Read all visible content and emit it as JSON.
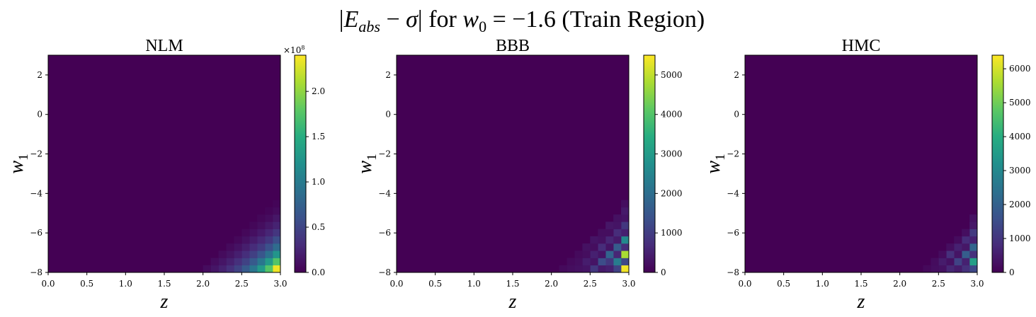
{
  "figure": {
    "suptitle_parts": {
      "open_bar": "|",
      "E": "E",
      "E_sub": "abs",
      "minus": " − ",
      "sigma": "σ",
      "close_bar": "|",
      "for_text": " for ",
      "w": "w",
      "w_sub": "0",
      "equals": " = −1.6 (Train Region)"
    },
    "colormap": "viridis",
    "colors": {
      "vmin": "#440154",
      "vmax": "#fde725",
      "background": "#ffffff",
      "axis": "#000000"
    }
  },
  "chart_data": [
    {
      "type": "heatmap",
      "title": "NLM",
      "xlabel": "z",
      "ylabel_base": "w",
      "ylabel_sub": "1",
      "xlim": [
        0.0,
        3.0
      ],
      "ylim": [
        -8,
        3
      ],
      "x_ticks": [
        "0.0",
        "0.5",
        "1.0",
        "1.5",
        "2.0",
        "2.5",
        "3.0"
      ],
      "x_tick_values": [
        0.0,
        0.5,
        1.0,
        1.5,
        2.0,
        2.5,
        3.0
      ],
      "y_ticks": [
        "−8",
        "−6",
        "−4",
        "−2",
        "0",
        "2"
      ],
      "y_tick_values": [
        -8,
        -6,
        -4,
        -2,
        0,
        2
      ],
      "colorbar": {
        "vmin": 0,
        "vmax": 240000000,
        "ticks": [
          "0.0",
          "0.5",
          "1.0",
          "1.5",
          "2.0"
        ],
        "tick_values": [
          0,
          50000000,
          100000000,
          150000000,
          200000000
        ],
        "offset_text": "×10",
        "offset_exp": "8"
      },
      "grid": {
        "nx": 30,
        "ny": 30
      },
      "nonzero_cells": [
        {
          "i": 29,
          "j": 0,
          "v": 235000000
        },
        {
          "i": 28,
          "j": 0,
          "v": 175000000
        },
        {
          "i": 29,
          "j": 1,
          "v": 175000000
        },
        {
          "i": 27,
          "j": 0,
          "v": 130000000
        },
        {
          "i": 28,
          "j": 1,
          "v": 130000000
        },
        {
          "i": 29,
          "j": 2,
          "v": 125000000
        },
        {
          "i": 26,
          "j": 0,
          "v": 95000000
        },
        {
          "i": 27,
          "j": 1,
          "v": 95000000
        },
        {
          "i": 28,
          "j": 2,
          "v": 90000000
        },
        {
          "i": 29,
          "j": 3,
          "v": 85000000
        },
        {
          "i": 25,
          "j": 0,
          "v": 68000000
        },
        {
          "i": 26,
          "j": 1,
          "v": 68000000
        },
        {
          "i": 27,
          "j": 2,
          "v": 65000000
        },
        {
          "i": 28,
          "j": 3,
          "v": 60000000
        },
        {
          "i": 29,
          "j": 4,
          "v": 58000000
        },
        {
          "i": 24,
          "j": 0,
          "v": 48000000
        },
        {
          "i": 25,
          "j": 1,
          "v": 48000000
        },
        {
          "i": 26,
          "j": 2,
          "v": 46000000
        },
        {
          "i": 27,
          "j": 3,
          "v": 42000000
        },
        {
          "i": 28,
          "j": 4,
          "v": 40000000
        },
        {
          "i": 29,
          "j": 5,
          "v": 38000000
        },
        {
          "i": 23,
          "j": 0,
          "v": 33000000
        },
        {
          "i": 24,
          "j": 1,
          "v": 33000000
        },
        {
          "i": 25,
          "j": 2,
          "v": 32000000
        },
        {
          "i": 26,
          "j": 3,
          "v": 30000000
        },
        {
          "i": 27,
          "j": 4,
          "v": 28000000
        },
        {
          "i": 28,
          "j": 5,
          "v": 26000000
        },
        {
          "i": 29,
          "j": 6,
          "v": 24000000
        },
        {
          "i": 22,
          "j": 0,
          "v": 22000000
        },
        {
          "i": 23,
          "j": 1,
          "v": 22000000
        },
        {
          "i": 24,
          "j": 2,
          "v": 21000000
        },
        {
          "i": 25,
          "j": 3,
          "v": 20000000
        },
        {
          "i": 26,
          "j": 4,
          "v": 19000000
        },
        {
          "i": 27,
          "j": 5,
          "v": 17000000
        },
        {
          "i": 28,
          "j": 6,
          "v": 16000000
        },
        {
          "i": 29,
          "j": 7,
          "v": 15000000
        },
        {
          "i": 21,
          "j": 0,
          "v": 14000000
        },
        {
          "i": 22,
          "j": 1,
          "v": 14000000
        },
        {
          "i": 23,
          "j": 2,
          "v": 13000000
        },
        {
          "i": 24,
          "j": 3,
          "v": 12000000
        },
        {
          "i": 25,
          "j": 4,
          "v": 11000000
        },
        {
          "i": 26,
          "j": 5,
          "v": 10000000
        },
        {
          "i": 27,
          "j": 6,
          "v": 9000000
        },
        {
          "i": 28,
          "j": 7,
          "v": 8000000
        },
        {
          "i": 29,
          "j": 8,
          "v": 7000000
        },
        {
          "i": 20,
          "j": 0,
          "v": 8000000
        },
        {
          "i": 21,
          "j": 1,
          "v": 8000000
        },
        {
          "i": 22,
          "j": 2,
          "v": 7000000
        },
        {
          "i": 23,
          "j": 3,
          "v": 6000000
        },
        {
          "i": 24,
          "j": 4,
          "v": 5000000
        },
        {
          "i": 25,
          "j": 5,
          "v": 5000000
        },
        {
          "i": 26,
          "j": 6,
          "v": 4000000
        },
        {
          "i": 27,
          "j": 7,
          "v": 4000000
        },
        {
          "i": 28,
          "j": 8,
          "v": 3000000
        },
        {
          "i": 29,
          "j": 9,
          "v": 3000000
        }
      ]
    },
    {
      "type": "heatmap",
      "title": "BBB",
      "xlabel": "z",
      "ylabel_base": "w",
      "ylabel_sub": "1",
      "xlim": [
        0.0,
        3.0
      ],
      "ylim": [
        -8,
        3
      ],
      "x_ticks": [
        "0.0",
        "0.5",
        "1.0",
        "1.5",
        "2.0",
        "2.5",
        "3.0"
      ],
      "x_tick_values": [
        0.0,
        0.5,
        1.0,
        1.5,
        2.0,
        2.5,
        3.0
      ],
      "y_ticks": [
        "−8",
        "−6",
        "−4",
        "−2",
        "0",
        "2"
      ],
      "y_tick_values": [
        -8,
        -6,
        -4,
        -2,
        0,
        2
      ],
      "colorbar": {
        "vmin": 0,
        "vmax": 5500,
        "ticks": [
          "0",
          "1000",
          "2000",
          "3000",
          "4000",
          "5000"
        ],
        "tick_values": [
          0,
          1000,
          2000,
          3000,
          4000,
          5000
        ]
      },
      "grid": {
        "nx": 30,
        "ny": 30
      },
      "nonzero_cells": [
        {
          "i": 29,
          "j": 0,
          "v": 5400
        },
        {
          "i": 29,
          "j": 1,
          "v": 1200
        },
        {
          "i": 29,
          "j": 2,
          "v": 4800
        },
        {
          "i": 29,
          "j": 3,
          "v": 700
        },
        {
          "i": 29,
          "j": 4,
          "v": 2600
        },
        {
          "i": 29,
          "j": 5,
          "v": 500
        },
        {
          "i": 29,
          "j": 6,
          "v": 900
        },
        {
          "i": 29,
          "j": 7,
          "v": 300
        },
        {
          "i": 29,
          "j": 8,
          "v": 400
        },
        {
          "i": 29,
          "j": 9,
          "v": 200
        },
        {
          "i": 28,
          "j": 0,
          "v": 1100
        },
        {
          "i": 28,
          "j": 1,
          "v": 2300
        },
        {
          "i": 28,
          "j": 2,
          "v": 600
        },
        {
          "i": 28,
          "j": 3,
          "v": 1600
        },
        {
          "i": 28,
          "j": 4,
          "v": 400
        },
        {
          "i": 28,
          "j": 5,
          "v": 700
        },
        {
          "i": 28,
          "j": 6,
          "v": 300
        },
        {
          "i": 28,
          "j": 7,
          "v": 250
        },
        {
          "i": 27,
          "j": 0,
          "v": 500
        },
        {
          "i": 27,
          "j": 1,
          "v": 900
        },
        {
          "i": 27,
          "j": 2,
          "v": 1800
        },
        {
          "i": 27,
          "j": 3,
          "v": 300
        },
        {
          "i": 27,
          "j": 4,
          "v": 600
        },
        {
          "i": 27,
          "j": 5,
          "v": 200
        },
        {
          "i": 27,
          "j": 6,
          "v": 350
        },
        {
          "i": 26,
          "j": 0,
          "v": 400
        },
        {
          "i": 26,
          "j": 1,
          "v": 1300
        },
        {
          "i": 26,
          "j": 2,
          "v": 300
        },
        {
          "i": 26,
          "j": 3,
          "v": 700
        },
        {
          "i": 26,
          "j": 4,
          "v": 250
        },
        {
          "i": 26,
          "j": 5,
          "v": 200
        },
        {
          "i": 25,
          "j": 0,
          "v": 900
        },
        {
          "i": 25,
          "j": 1,
          "v": 300
        },
        {
          "i": 25,
          "j": 2,
          "v": 500
        },
        {
          "i": 25,
          "j": 3,
          "v": 200
        },
        {
          "i": 25,
          "j": 4,
          "v": 300
        },
        {
          "i": 24,
          "j": 0,
          "v": 300
        },
        {
          "i": 24,
          "j": 1,
          "v": 450
        },
        {
          "i": 24,
          "j": 2,
          "v": 200
        },
        {
          "i": 24,
          "j": 3,
          "v": 250
        },
        {
          "i": 23,
          "j": 0,
          "v": 250
        },
        {
          "i": 23,
          "j": 1,
          "v": 200
        },
        {
          "i": 23,
          "j": 2,
          "v": 150
        },
        {
          "i": 22,
          "j": 0,
          "v": 200
        },
        {
          "i": 22,
          "j": 1,
          "v": 150
        },
        {
          "i": 21,
          "j": 0,
          "v": 150
        }
      ]
    },
    {
      "type": "heatmap",
      "title": "HMC",
      "xlabel": "z",
      "ylabel_base": "w",
      "ylabel_sub": "1",
      "xlim": [
        0.0,
        3.0
      ],
      "ylim": [
        -8,
        3
      ],
      "x_ticks": [
        "0.0",
        "0.5",
        "1.0",
        "1.5",
        "2.0",
        "2.5",
        "3.0"
      ],
      "x_tick_values": [
        0.0,
        0.5,
        1.0,
        1.5,
        2.0,
        2.5,
        3.0
      ],
      "y_ticks": [
        "−8",
        "−6",
        "−4",
        "−2",
        "0",
        "2"
      ],
      "y_tick_values": [
        -8,
        -6,
        -4,
        -2,
        0,
        2
      ],
      "colorbar": {
        "vmin": 0,
        "vmax": 6400,
        "ticks": [
          "0",
          "1000",
          "2000",
          "3000",
          "4000",
          "5000",
          "6000"
        ],
        "tick_values": [
          0,
          1000,
          2000,
          3000,
          4000,
          5000,
          6000
        ]
      },
      "grid": {
        "nx": 30,
        "ny": 30
      },
      "nonzero_cells": [
        {
          "i": 29,
          "j": 0,
          "v": 1400
        },
        {
          "i": 29,
          "j": 1,
          "v": 3600
        },
        {
          "i": 29,
          "j": 2,
          "v": 900
        },
        {
          "i": 29,
          "j": 3,
          "v": 2100
        },
        {
          "i": 29,
          "j": 4,
          "v": 600
        },
        {
          "i": 29,
          "j": 5,
          "v": 1100
        },
        {
          "i": 29,
          "j": 6,
          "v": 400
        },
        {
          "i": 29,
          "j": 7,
          "v": 300
        },
        {
          "i": 28,
          "j": 0,
          "v": 900
        },
        {
          "i": 28,
          "j": 1,
          "v": 600
        },
        {
          "i": 28,
          "j": 2,
          "v": 1900
        },
        {
          "i": 28,
          "j": 3,
          "v": 400
        },
        {
          "i": 28,
          "j": 4,
          "v": 800
        },
        {
          "i": 28,
          "j": 5,
          "v": 250
        },
        {
          "i": 27,
          "j": 0,
          "v": 500
        },
        {
          "i": 27,
          "j": 1,
          "v": 1300
        },
        {
          "i": 27,
          "j": 2,
          "v": 350
        },
        {
          "i": 27,
          "j": 3,
          "v": 600
        },
        {
          "i": 27,
          "j": 4,
          "v": 200
        },
        {
          "i": 26,
          "j": 0,
          "v": 700
        },
        {
          "i": 26,
          "j": 1,
          "v": 300
        },
        {
          "i": 26,
          "j": 2,
          "v": 900
        },
        {
          "i": 26,
          "j": 3,
          "v": 250
        },
        {
          "i": 25,
          "j": 0,
          "v": 300
        },
        {
          "i": 25,
          "j": 1,
          "v": 500
        },
        {
          "i": 25,
          "j": 2,
          "v": 200
        },
        {
          "i": 24,
          "j": 0,
          "v": 250
        },
        {
          "i": 24,
          "j": 1,
          "v": 200
        },
        {
          "i": 23,
          "j": 0,
          "v": 150
        }
      ]
    }
  ]
}
